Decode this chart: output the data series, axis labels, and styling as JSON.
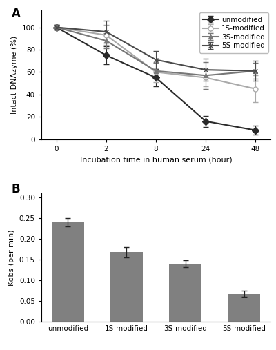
{
  "panel_A": {
    "x_positions": [
      0,
      1,
      2,
      3,
      4
    ],
    "x_labels": [
      "0",
      "2",
      "8",
      "24",
      "48"
    ],
    "series": {
      "unmodified": {
        "y": [
          100,
          75,
          55,
          16,
          8
        ],
        "yerr": [
          2,
          8,
          8,
          5,
          4
        ],
        "color": "#2a2a2a",
        "marker": "D",
        "marker_fill": "#2a2a2a",
        "markersize": 5,
        "linestyle": "-",
        "linewidth": 1.5
      },
      "1S-modified": {
        "y": [
          100,
          93,
          60,
          55,
          45
        ],
        "yerr": [
          2,
          9,
          9,
          8,
          12
        ],
        "color": "#aaaaaa",
        "marker": "o",
        "marker_fill": "white",
        "markersize": 5,
        "linestyle": "-",
        "linewidth": 1.5
      },
      "3S-modified": {
        "y": [
          100,
          88,
          61,
          57,
          61
        ],
        "yerr": [
          2,
          7,
          7,
          12,
          7
        ],
        "color": "#777777",
        "marker": "^",
        "marker_fill": "#777777",
        "markersize": 5,
        "linestyle": "-",
        "linewidth": 1.5
      },
      "5S-modified": {
        "y": [
          100,
          96,
          71,
          62,
          61
        ],
        "yerr": [
          2,
          10,
          8,
          10,
          9
        ],
        "color": "#4a4a4a",
        "marker": "x",
        "marker_fill": "#4a4a4a",
        "markersize": 5,
        "linestyle": "-",
        "linewidth": 1.5
      }
    },
    "xlabel": "Incubation time in human serum (hour)",
    "ylabel": "Intact DNAzyme (%)",
    "xlim": [
      -0.3,
      4.3
    ],
    "ylim": [
      0,
      115
    ],
    "yticks": [
      0,
      20,
      40,
      60,
      80,
      100
    ],
    "legend_order": [
      "unmodified",
      "1S-modified",
      "3S-modified",
      "5S-modified"
    ]
  },
  "panel_B": {
    "categories": [
      "unmodified",
      "1S-modified",
      "3S-modified",
      "5S-modified"
    ],
    "values": [
      0.24,
      0.168,
      0.14,
      0.068
    ],
    "yerr": [
      0.01,
      0.012,
      0.008,
      0.008
    ],
    "bar_color": "#808080",
    "ylabel": "Kobs (per min)",
    "ylim": [
      0,
      0.31
    ],
    "yticks": [
      0.0,
      0.05,
      0.1,
      0.15,
      0.2,
      0.25,
      0.3
    ]
  },
  "bg_color": "#ffffff",
  "label_fontsize": 8,
  "tick_fontsize": 7.5,
  "legend_fontsize": 7.5
}
